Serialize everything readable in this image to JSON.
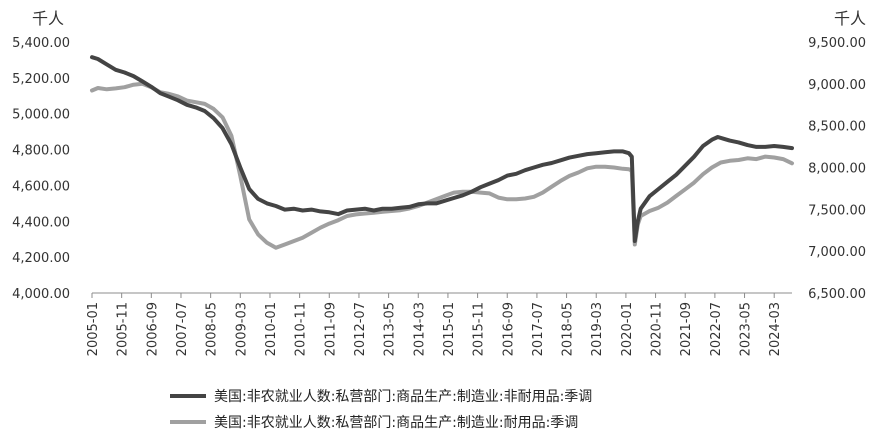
{
  "chart_data": {
    "type": "line",
    "left_unit": "千人",
    "right_unit": "千人",
    "left_ylim": [
      4000,
      5400
    ],
    "right_ylim": [
      6500,
      9500
    ],
    "left_ticks": [
      "4,000.00",
      "4,200.00",
      "4,400.00",
      "4,600.00",
      "4,800.00",
      "5,000.00",
      "5,200.00",
      "5,400.00"
    ],
    "right_ticks": [
      "6,500.00",
      "7,000.00",
      "7,500.00",
      "8,000.00",
      "8,500.00",
      "9,000.00",
      "9,500.00"
    ],
    "x_tick_labels": [
      "2005-01",
      "2005-11",
      "2006-09",
      "2007-07",
      "2008-05",
      "2009-03",
      "2010-01",
      "2010-11",
      "2011-09",
      "2012-07",
      "2013-05",
      "2014-03",
      "2015-01",
      "2015-11",
      "2016-09",
      "2017-07",
      "2018-05",
      "2019-03",
      "2020-01",
      "2020-11",
      "2021-09",
      "2022-07",
      "2023-05",
      "2024-03"
    ],
    "x_start": "2005-01",
    "x_end": "2024-09",
    "grid": false,
    "legend_position": "bottom",
    "series": [
      {
        "name": "美国:非农就业人数:私营部门:商品生产:制造业:非耐用品:季调",
        "axis": "left",
        "color": "#444444",
        "points": [
          [
            "2005-01",
            5315
          ],
          [
            "2005-03",
            5305
          ],
          [
            "2005-06",
            5275
          ],
          [
            "2005-09",
            5245
          ],
          [
            "2005-12",
            5230
          ],
          [
            "2006-03",
            5210
          ],
          [
            "2006-06",
            5180
          ],
          [
            "2006-09",
            5150
          ],
          [
            "2006-12",
            5115
          ],
          [
            "2007-03",
            5095
          ],
          [
            "2007-06",
            5075
          ],
          [
            "2007-09",
            5050
          ],
          [
            "2007-12",
            5035
          ],
          [
            "2008-03",
            5015
          ],
          [
            "2008-06",
            4975
          ],
          [
            "2008-09",
            4920
          ],
          [
            "2008-12",
            4830
          ],
          [
            "2009-03",
            4700
          ],
          [
            "2009-06",
            4580
          ],
          [
            "2009-09",
            4525
          ],
          [
            "2009-12",
            4500
          ],
          [
            "2010-03",
            4485
          ],
          [
            "2010-06",
            4465
          ],
          [
            "2010-09",
            4470
          ],
          [
            "2010-12",
            4460
          ],
          [
            "2011-03",
            4465
          ],
          [
            "2011-06",
            4455
          ],
          [
            "2011-09",
            4450
          ],
          [
            "2011-12",
            4440
          ],
          [
            "2012-03",
            4460
          ],
          [
            "2012-06",
            4465
          ],
          [
            "2012-09",
            4470
          ],
          [
            "2012-12",
            4460
          ],
          [
            "2013-03",
            4470
          ],
          [
            "2013-06",
            4470
          ],
          [
            "2013-09",
            4475
          ],
          [
            "2013-12",
            4480
          ],
          [
            "2014-03",
            4495
          ],
          [
            "2014-06",
            4500
          ],
          [
            "2014-09",
            4500
          ],
          [
            "2014-12",
            4515
          ],
          [
            "2015-03",
            4530
          ],
          [
            "2015-06",
            4545
          ],
          [
            "2015-09",
            4565
          ],
          [
            "2015-12",
            4590
          ],
          [
            "2016-03",
            4610
          ],
          [
            "2016-06",
            4630
          ],
          [
            "2016-09",
            4655
          ],
          [
            "2016-12",
            4665
          ],
          [
            "2017-03",
            4685
          ],
          [
            "2017-06",
            4700
          ],
          [
            "2017-09",
            4715
          ],
          [
            "2017-12",
            4725
          ],
          [
            "2018-03",
            4740
          ],
          [
            "2018-06",
            4755
          ],
          [
            "2018-09",
            4765
          ],
          [
            "2018-12",
            4775
          ],
          [
            "2019-03",
            4780
          ],
          [
            "2019-06",
            4785
          ],
          [
            "2019-09",
            4790
          ],
          [
            "2019-12",
            4790
          ],
          [
            "2020-02",
            4780
          ],
          [
            "2020-03",
            4760
          ],
          [
            "2020-04",
            4290
          ],
          [
            "2020-05",
            4400
          ],
          [
            "2020-06",
            4470
          ],
          [
            "2020-09",
            4540
          ],
          [
            "2020-12",
            4580
          ],
          [
            "2021-03",
            4620
          ],
          [
            "2021-06",
            4660
          ],
          [
            "2021-09",
            4710
          ],
          [
            "2021-12",
            4760
          ],
          [
            "2022-03",
            4820
          ],
          [
            "2022-06",
            4855
          ],
          [
            "2022-08",
            4870
          ],
          [
            "2022-10",
            4860
          ],
          [
            "2022-12",
            4850
          ],
          [
            "2023-03",
            4840
          ],
          [
            "2023-06",
            4825
          ],
          [
            "2023-09",
            4815
          ],
          [
            "2023-12",
            4815
          ],
          [
            "2024-03",
            4820
          ],
          [
            "2024-06",
            4815
          ],
          [
            "2024-09",
            4808
          ]
        ]
      },
      {
        "name": "美国:非农就业人数:私营部门:商品生产:制造业:耐用品:季调",
        "axis": "right",
        "color": "#a0a0a0",
        "points": [
          [
            "2005-01",
            8920
          ],
          [
            "2005-03",
            8950
          ],
          [
            "2005-06",
            8935
          ],
          [
            "2005-09",
            8945
          ],
          [
            "2005-12",
            8960
          ],
          [
            "2006-03",
            8990
          ],
          [
            "2006-06",
            9000
          ],
          [
            "2006-09",
            8960
          ],
          [
            "2006-12",
            8900
          ],
          [
            "2007-03",
            8880
          ],
          [
            "2007-06",
            8850
          ],
          [
            "2007-09",
            8800
          ],
          [
            "2007-12",
            8780
          ],
          [
            "2008-03",
            8760
          ],
          [
            "2008-06",
            8700
          ],
          [
            "2008-09",
            8600
          ],
          [
            "2008-12",
            8380
          ],
          [
            "2009-03",
            7900
          ],
          [
            "2009-06",
            7380
          ],
          [
            "2009-09",
            7200
          ],
          [
            "2009-12",
            7100
          ],
          [
            "2010-03",
            7040
          ],
          [
            "2010-06",
            7080
          ],
          [
            "2010-09",
            7120
          ],
          [
            "2010-12",
            7160
          ],
          [
            "2011-03",
            7220
          ],
          [
            "2011-06",
            7280
          ],
          [
            "2011-09",
            7330
          ],
          [
            "2011-12",
            7370
          ],
          [
            "2012-03",
            7420
          ],
          [
            "2012-06",
            7440
          ],
          [
            "2012-09",
            7450
          ],
          [
            "2012-12",
            7460
          ],
          [
            "2013-03",
            7470
          ],
          [
            "2013-06",
            7480
          ],
          [
            "2013-09",
            7490
          ],
          [
            "2013-12",
            7510
          ],
          [
            "2014-03",
            7540
          ],
          [
            "2014-06",
            7580
          ],
          [
            "2014-09",
            7620
          ],
          [
            "2014-12",
            7660
          ],
          [
            "2015-03",
            7700
          ],
          [
            "2015-06",
            7710
          ],
          [
            "2015-09",
            7710
          ],
          [
            "2015-12",
            7700
          ],
          [
            "2016-03",
            7690
          ],
          [
            "2016-06",
            7640
          ],
          [
            "2016-09",
            7620
          ],
          [
            "2016-12",
            7620
          ],
          [
            "2017-03",
            7630
          ],
          [
            "2017-06",
            7650
          ],
          [
            "2017-09",
            7700
          ],
          [
            "2017-12",
            7770
          ],
          [
            "2018-03",
            7840
          ],
          [
            "2018-06",
            7900
          ],
          [
            "2018-09",
            7940
          ],
          [
            "2018-12",
            7990
          ],
          [
            "2019-03",
            8010
          ],
          [
            "2019-06",
            8010
          ],
          [
            "2019-09",
            8000
          ],
          [
            "2019-12",
            7985
          ],
          [
            "2020-02",
            7980
          ],
          [
            "2020-03",
            7960
          ],
          [
            "2020-04",
            7080
          ],
          [
            "2020-05",
            7320
          ],
          [
            "2020-06",
            7420
          ],
          [
            "2020-09",
            7480
          ],
          [
            "2020-12",
            7520
          ],
          [
            "2021-03",
            7580
          ],
          [
            "2021-06",
            7660
          ],
          [
            "2021-09",
            7740
          ],
          [
            "2021-12",
            7820
          ],
          [
            "2022-03",
            7920
          ],
          [
            "2022-06",
            8000
          ],
          [
            "2022-09",
            8060
          ],
          [
            "2022-12",
            8080
          ],
          [
            "2023-03",
            8090
          ],
          [
            "2023-06",
            8110
          ],
          [
            "2023-09",
            8100
          ],
          [
            "2023-12",
            8130
          ],
          [
            "2024-03",
            8120
          ],
          [
            "2024-06",
            8100
          ],
          [
            "2024-09",
            8050
          ]
        ]
      }
    ]
  }
}
